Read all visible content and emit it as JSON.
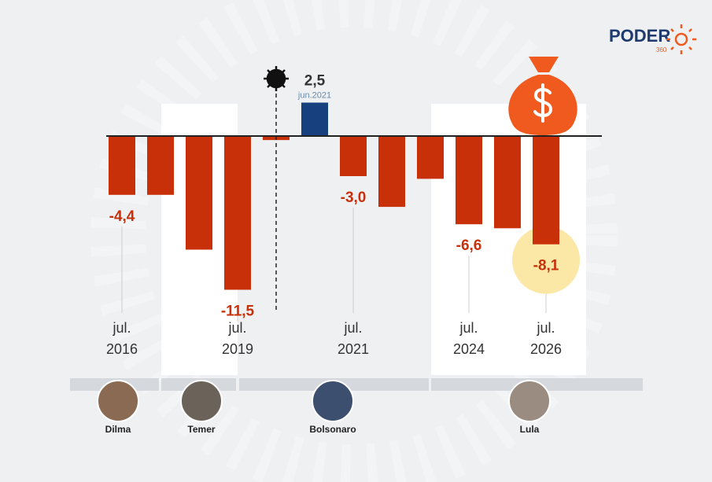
{
  "logo": {
    "name": "PODER",
    "sub": "360"
  },
  "chart_data": {
    "type": "bar",
    "categories": [
      "jul. 2016",
      null,
      null,
      "jul. 2019",
      null,
      "jun.2021",
      "jul. 2021",
      null,
      null,
      "jul. 2024",
      null,
      "jul. 2026"
    ],
    "values": [
      -4.4,
      -4.4,
      -8.5,
      -11.5,
      -0.3,
      2.5,
      -3.0,
      -5.3,
      -3.2,
      -6.6,
      -6.9,
      -8.1
    ],
    "value_labels": [
      "-4,4",
      null,
      null,
      "-11,5",
      null,
      "2,5",
      "-3,0",
      null,
      null,
      "-6,6",
      null,
      "-8,1"
    ],
    "colors": [
      "#c8300a",
      "#c8300a",
      "#c8300a",
      "#c8300a",
      "#c8300a",
      "#17407e",
      "#c8300a",
      "#c8300a",
      "#c8300a",
      "#c8300a",
      "#c8300a",
      "#c8300a"
    ]
  },
  "presidents": [
    "Dilma",
    "Temer",
    "Bolsonaro",
    "Lula"
  ]
}
